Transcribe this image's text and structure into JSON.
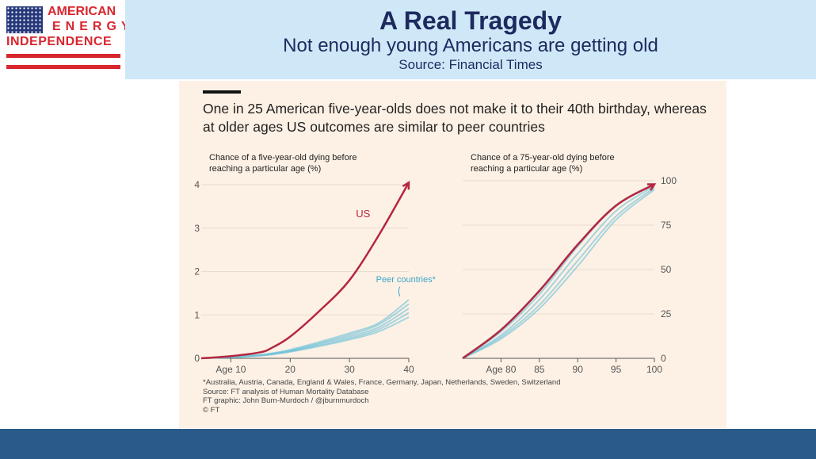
{
  "logo": {
    "lines": [
      "AMERICAN",
      "ENERGY",
      "INDEPENDENCE"
    ]
  },
  "header": {
    "title": "A Real Tragedy",
    "subtitle": "Not enough young Americans are getting old",
    "source": "Source: Financial Times"
  },
  "headline": "One in 25 American five-year-olds does not make it to their 40th birthday, whereas at older ages US outcomes are similar to peer countries",
  "footnotes": [
    "*Australia, Austria, Canada, England & Wales, France, Germany, Japan, Netherlands, Sweden, Switzerland",
    "Source: FT analysis of Human Mortality Database",
    "FT graphic: John Burn-Murdoch / @jburnmurdoch",
    "© FT"
  ],
  "colors": {
    "us": "#b5263f",
    "peer": "#6ec1d9"
  },
  "chart_data": [
    {
      "type": "line",
      "title": "Chance of a five-year-old dying before reaching a particular age (%)",
      "xlim": [
        5,
        40
      ],
      "ylim": [
        0,
        4
      ],
      "xticks": [
        "Age 10",
        "20",
        "30",
        "40"
      ],
      "xtickvals": [
        10,
        20,
        30,
        40
      ],
      "yticks": [
        "0",
        "1",
        "2",
        "3",
        "4"
      ],
      "grid": true,
      "x": [
        5,
        10,
        15,
        17,
        20,
        25,
        30,
        35,
        40
      ],
      "series": [
        {
          "name": "US",
          "values": [
            0,
            0.05,
            0.14,
            0.25,
            0.5,
            1.1,
            1.8,
            2.85,
            4.05
          ]
        },
        {
          "name": "Peer countries*",
          "values": [
            0,
            0.03,
            0.08,
            0.12,
            0.2,
            0.38,
            0.58,
            0.82,
            1.35
          ]
        },
        {
          "values": [
            0,
            0.03,
            0.08,
            0.11,
            0.18,
            0.35,
            0.54,
            0.78,
            1.25
          ]
        },
        {
          "values": [
            0,
            0.03,
            0.07,
            0.1,
            0.17,
            0.33,
            0.5,
            0.72,
            1.15
          ]
        },
        {
          "values": [
            0,
            0.03,
            0.07,
            0.1,
            0.16,
            0.3,
            0.46,
            0.67,
            1.05
          ]
        },
        {
          "values": [
            0,
            0.02,
            0.06,
            0.09,
            0.15,
            0.28,
            0.43,
            0.62,
            0.95
          ]
        }
      ]
    },
    {
      "type": "line",
      "title": "Chance of a 75-year-old dying before reaching a particular age (%)",
      "xlim": [
        75,
        100
      ],
      "ylim": [
        0,
        100
      ],
      "xticks": [
        "Age 80",
        "85",
        "90",
        "95",
        "100"
      ],
      "xtickvals": [
        80,
        85,
        90,
        95,
        100
      ],
      "yticks": [
        "0",
        "25",
        "50",
        "75",
        "100"
      ],
      "grid": true,
      "x": [
        75,
        80,
        85,
        90,
        95,
        100
      ],
      "series": [
        {
          "name": "US",
          "values": [
            0,
            16,
            38,
            64,
            86,
            98
          ]
        },
        {
          "values": [
            0,
            15,
            36,
            63,
            86,
            98
          ]
        },
        {
          "values": [
            0,
            13,
            33,
            59,
            83,
            97
          ]
        },
        {
          "values": [
            0,
            12,
            30,
            55,
            80,
            96
          ]
        },
        {
          "values": [
            0,
            11,
            28,
            52,
            78,
            95
          ]
        }
      ]
    }
  ]
}
